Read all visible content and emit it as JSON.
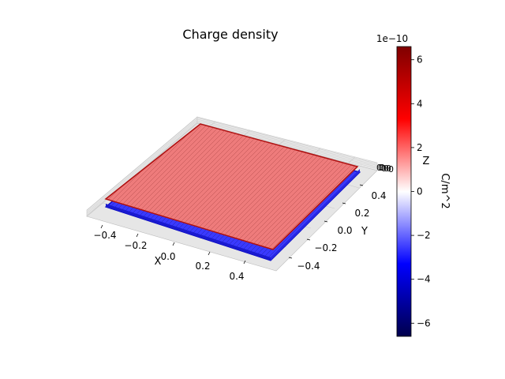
{
  "chart_data": {
    "type": "surface3d",
    "title": "Charge density",
    "xlabel": "X",
    "ylabel": "Y",
    "zlabel": "Z",
    "x_ticks": [
      "−0.4",
      "−0.2",
      "0.0",
      "0.2",
      "0.4"
    ],
    "y_ticks": [
      "−0.4",
      "−0.2",
      "0.0",
      "0.2",
      "0.4"
    ],
    "xlim": [
      -0.5,
      0.5
    ],
    "ylim": [
      -0.5,
      0.5
    ],
    "plates": [
      {
        "z": 0.0,
        "charge_density": -6.5e-10,
        "color": "#0000ff"
      },
      {
        "z": 0.01,
        "charge_density": 6.5e-10,
        "color": "#ff2020"
      }
    ],
    "colorbar": {
      "label": "C/m^2",
      "multiplier": "1e−10",
      "ticks": [
        "−6",
        "−4",
        "−2",
        "0",
        "2",
        "4",
        "6"
      ],
      "tick_values": [
        -6,
        -4,
        -2,
        0,
        2,
        4,
        6
      ],
      "range": [
        -6.6,
        6.6
      ],
      "colormap": "seismic"
    }
  }
}
